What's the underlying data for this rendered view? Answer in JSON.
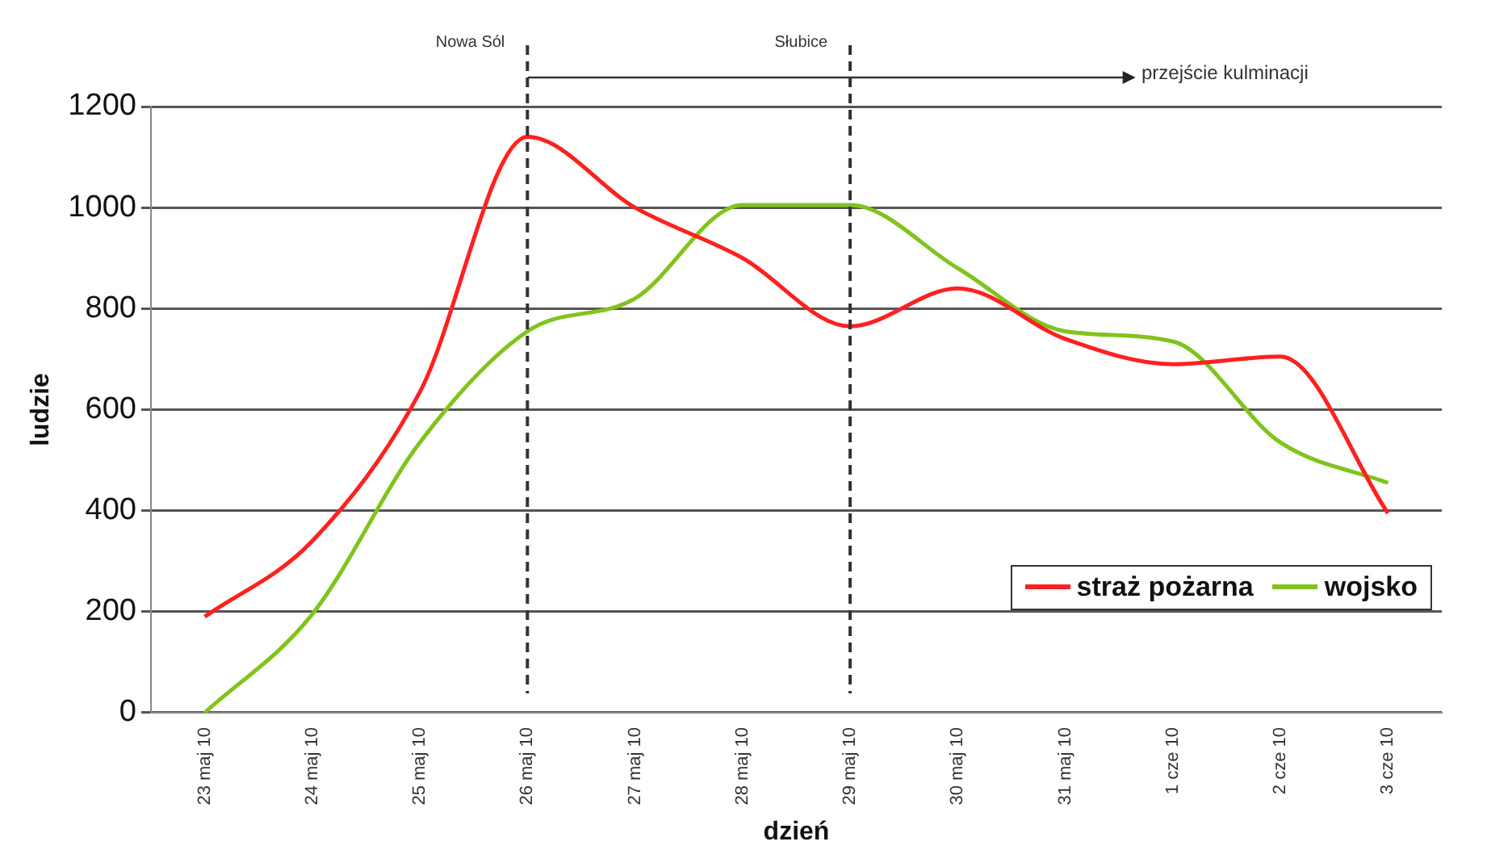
{
  "chart_data": {
    "type": "line",
    "xlabel": "dzień",
    "ylabel": "ludzie",
    "categories": [
      "23 maj 10",
      "24 maj 10",
      "25 maj 10",
      "26 maj 10",
      "27 maj 10",
      "28 maj 10",
      "29 maj 10",
      "30 maj 10",
      "31 maj 10",
      "1 cze 10",
      "2 cze 10",
      "3 cze 10"
    ],
    "series": [
      {
        "name": "straż pożarna",
        "color": "#ff2020",
        "values": [
          190,
          340,
          635,
          1140,
          1000,
          900,
          765,
          840,
          740,
          690,
          705,
          395
        ]
      },
      {
        "name": "wojsko",
        "color": "#80c41c",
        "values": [
          0,
          195,
          535,
          755,
          820,
          1005,
          1005,
          880,
          755,
          735,
          535,
          455
        ]
      }
    ],
    "ylim": [
      0,
      1200
    ],
    "yticks": [
      0,
      200,
      400,
      600,
      800,
      1000,
      1200
    ],
    "grid": "y",
    "legend": "bottom right",
    "marker": "none",
    "line_style": "solid",
    "ref_lines": [
      {
        "axis": "x",
        "value": "26 maj 10",
        "label": "Nowa Sól",
        "line_style": "dashed",
        "color": "#333333"
      },
      {
        "axis": "x",
        "value": "29 maj 10",
        "label": "Słubice",
        "line_style": "dashed",
        "color": "#333333"
      }
    ],
    "annotations": [
      "przejście kulminacji"
    ]
  }
}
